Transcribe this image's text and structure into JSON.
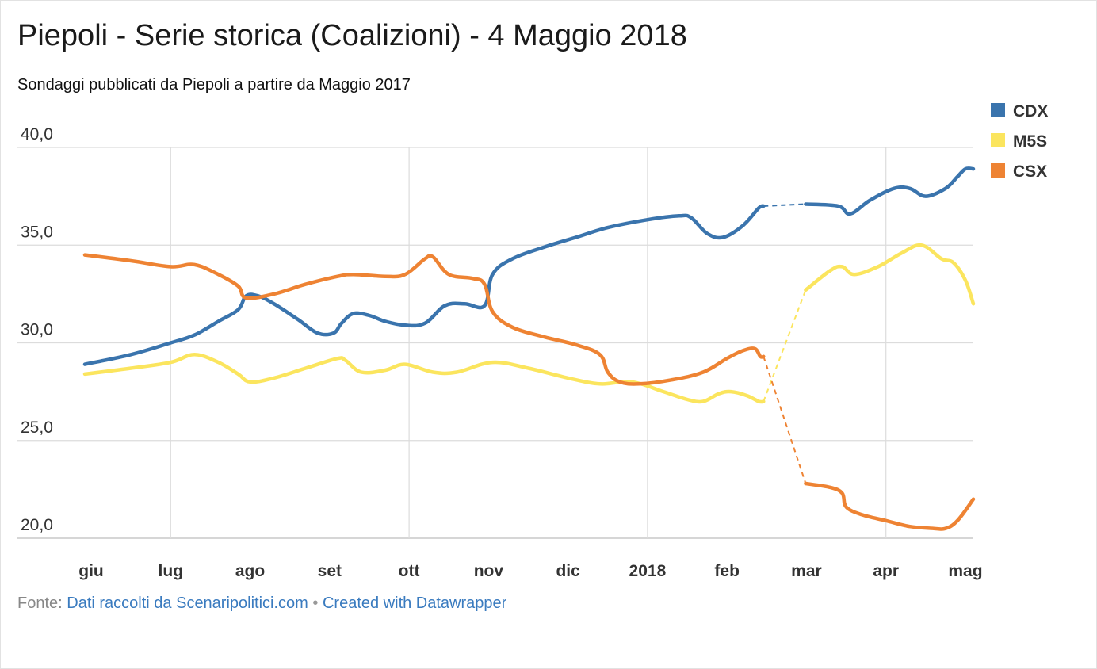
{
  "title": "Piepoli - Serie storica (Coalizioni) - 4 Maggio 2018",
  "subtitle": "Sondaggi pubblicati da Piepoli a partire da Maggio 2017",
  "footer": {
    "prefix": "Fonte:",
    "source_link": "Dati raccolti da Scenaripolitici.com",
    "separator": "•",
    "credit_link": "Created with Datawrapper"
  },
  "chart_data": {
    "type": "line",
    "y_ticks": [
      "40,0",
      "35,0",
      "30,0",
      "25,0",
      "20,0"
    ],
    "y_tick_values": [
      40,
      35,
      30,
      25,
      20
    ],
    "ylim": [
      20,
      40
    ],
    "x_ticks": [
      "giu",
      "lug",
      "ago",
      "set",
      "ott",
      "nov",
      "dic",
      "2018",
      "feb",
      "mar",
      "apr",
      "mag"
    ],
    "x_tick_values": [
      0,
      1,
      2,
      3,
      4,
      5,
      6,
      7,
      8,
      9,
      10,
      11
    ],
    "xlim": [
      -0.08,
      11.1
    ],
    "grid": true,
    "legend_position": "top-right",
    "gap": {
      "from": 8.46,
      "to": 8.99
    },
    "series": [
      {
        "name": "CDX",
        "color": "#3a74ad",
        "points": [
          [
            -0.08,
            28.9
          ],
          [
            0.5,
            29.4
          ],
          [
            1.0,
            30.0
          ],
          [
            1.3,
            30.4
          ],
          [
            1.6,
            31.1
          ],
          [
            1.85,
            31.7
          ],
          [
            1.95,
            32.4
          ],
          [
            2.1,
            32.4
          ],
          [
            2.3,
            32.0
          ],
          [
            2.6,
            31.2
          ],
          [
            2.85,
            30.5
          ],
          [
            3.05,
            30.5
          ],
          [
            3.15,
            31.0
          ],
          [
            3.3,
            31.5
          ],
          [
            3.5,
            31.4
          ],
          [
            3.7,
            31.1
          ],
          [
            3.95,
            30.9
          ],
          [
            4.2,
            31.0
          ],
          [
            4.45,
            31.9
          ],
          [
            4.7,
            32.0
          ],
          [
            4.95,
            31.9
          ],
          [
            5.05,
            33.5
          ],
          [
            5.3,
            34.3
          ],
          [
            5.7,
            34.9
          ],
          [
            6.1,
            35.4
          ],
          [
            6.5,
            35.9
          ],
          [
            7.0,
            36.3
          ],
          [
            7.4,
            36.5
          ],
          [
            7.55,
            36.4
          ],
          [
            7.75,
            35.6
          ],
          [
            7.95,
            35.4
          ],
          [
            8.2,
            36.0
          ],
          [
            8.4,
            36.9
          ],
          [
            8.46,
            37.0
          ],
          [
            8.99,
            37.1
          ],
          [
            9.4,
            37.0
          ],
          [
            9.55,
            36.6
          ],
          [
            9.8,
            37.3
          ],
          [
            10.1,
            37.9
          ],
          [
            10.3,
            37.9
          ],
          [
            10.5,
            37.5
          ],
          [
            10.75,
            37.9
          ],
          [
            10.9,
            38.5
          ],
          [
            11.0,
            38.9
          ],
          [
            11.1,
            38.9
          ]
        ]
      },
      {
        "name": "M5S",
        "color": "#fbe55e",
        "points": [
          [
            -0.08,
            28.4
          ],
          [
            0.5,
            28.7
          ],
          [
            1.0,
            29.0
          ],
          [
            1.3,
            29.4
          ],
          [
            1.6,
            29.0
          ],
          [
            1.85,
            28.4
          ],
          [
            2.0,
            28.0
          ],
          [
            2.3,
            28.2
          ],
          [
            2.7,
            28.7
          ],
          [
            3.1,
            29.2
          ],
          [
            3.2,
            29.1
          ],
          [
            3.4,
            28.5
          ],
          [
            3.7,
            28.6
          ],
          [
            3.95,
            28.9
          ],
          [
            4.3,
            28.5
          ],
          [
            4.6,
            28.5
          ],
          [
            5.05,
            29.0
          ],
          [
            5.5,
            28.7
          ],
          [
            6.0,
            28.2
          ],
          [
            6.4,
            27.9
          ],
          [
            6.8,
            28.0
          ],
          [
            7.2,
            27.5
          ],
          [
            7.5,
            27.1
          ],
          [
            7.7,
            27.0
          ],
          [
            7.9,
            27.4
          ],
          [
            8.05,
            27.5
          ],
          [
            8.25,
            27.3
          ],
          [
            8.4,
            27.0
          ],
          [
            8.46,
            27.0
          ],
          [
            8.99,
            32.7
          ],
          [
            9.3,
            33.7
          ],
          [
            9.45,
            33.9
          ],
          [
            9.6,
            33.5
          ],
          [
            9.9,
            33.9
          ],
          [
            10.2,
            34.6
          ],
          [
            10.45,
            35.0
          ],
          [
            10.7,
            34.3
          ],
          [
            10.85,
            34.1
          ],
          [
            11.0,
            33.2
          ],
          [
            11.1,
            32.0
          ]
        ]
      },
      {
        "name": "CSX",
        "color": "#ee8333",
        "points": [
          [
            -0.08,
            34.5
          ],
          [
            0.5,
            34.2
          ],
          [
            1.0,
            33.9
          ],
          [
            1.3,
            34.0
          ],
          [
            1.6,
            33.5
          ],
          [
            1.85,
            32.9
          ],
          [
            1.95,
            32.3
          ],
          [
            2.3,
            32.5
          ],
          [
            2.7,
            33.0
          ],
          [
            3.1,
            33.4
          ],
          [
            3.3,
            33.5
          ],
          [
            3.7,
            33.4
          ],
          [
            3.95,
            33.5
          ],
          [
            4.2,
            34.3
          ],
          [
            4.3,
            34.4
          ],
          [
            4.5,
            33.5
          ],
          [
            4.8,
            33.3
          ],
          [
            4.95,
            33.0
          ],
          [
            5.05,
            31.6
          ],
          [
            5.3,
            30.8
          ],
          [
            5.7,
            30.3
          ],
          [
            6.1,
            29.9
          ],
          [
            6.4,
            29.4
          ],
          [
            6.5,
            28.5
          ],
          [
            6.65,
            28.0
          ],
          [
            6.9,
            27.9
          ],
          [
            7.3,
            28.1
          ],
          [
            7.7,
            28.5
          ],
          [
            8.0,
            29.2
          ],
          [
            8.2,
            29.6
          ],
          [
            8.35,
            29.7
          ],
          [
            8.42,
            29.3
          ],
          [
            8.46,
            29.3
          ],
          [
            8.99,
            22.8
          ],
          [
            9.3,
            22.6
          ],
          [
            9.45,
            22.3
          ],
          [
            9.5,
            21.6
          ],
          [
            9.7,
            21.2
          ],
          [
            10.0,
            20.9
          ],
          [
            10.3,
            20.6
          ],
          [
            10.6,
            20.5
          ],
          [
            10.75,
            20.5
          ],
          [
            10.9,
            20.9
          ],
          [
            11.1,
            22.0
          ]
        ]
      }
    ]
  }
}
